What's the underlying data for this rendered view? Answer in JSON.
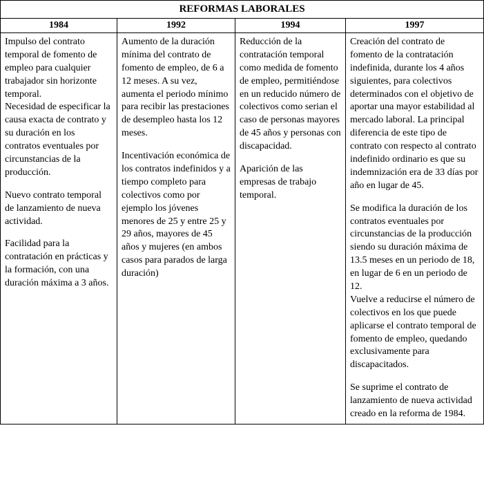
{
  "title": "REFORMAS LABORALES",
  "headers": {
    "h1": "1984",
    "h2": "1992",
    "h3": "1994",
    "h4": "1997"
  },
  "col1": {
    "p1": "Impulso del contrato temporal de fomento de empleo para cualquier trabajador sin horizonte temporal.",
    "p2": "Necesidad de especificar la causa exacta de contrato y su duración en los contratos eventuales por circunstancias de la producción.",
    "p3": "Nuevo contrato temporal de lanzamiento de nueva actividad.",
    "p4": "Facilidad para la contratación en prácticas y la formación, con una duración máxima a 3 años."
  },
  "col2": {
    "p1": "Aumento de la duración mínima del contrato de fomento de empleo, de 6 a 12 meses. A su vez, aumenta el periodo mínimo para recibir las prestaciones de desempleo hasta los 12 meses.",
    "p2": "Incentivación económica de los contratos indefinidos y a tiempo completo para colectivos como por ejemplo los jóvenes menores de 25 y entre 25 y 29 años, mayores de 45 años y mujeres (en ambos casos para parados de larga duración)"
  },
  "col3": {
    "p1": "Reducción de la contratación temporal como medida de fomento de empleo, permitiéndose en un reducido número de colectivos como serian el caso de personas mayores de 45 años y personas con discapacidad.",
    "p2": "Aparición de las empresas de trabajo temporal."
  },
  "col4": {
    "p1": "Creación del contrato de fomento de la contratación indefinida, durante los 4 años siguientes, para colectivos determinados con el objetivo de aportar una mayor estabilidad al mercado laboral. La principal diferencia de este tipo de contrato con respecto al  contrato indefinido ordinario es que su indemnización era de 33 días por año en lugar de 45.",
    "p2": "Se modifica la duración de los contratos eventuales por circunstancias de la producción siendo su duración máxima de 13.5 meses en un periodo de 18, en lugar de 6 en un periodo de 12.",
    "p3": "Vuelve a reducirse el número de colectivos en los que puede aplicarse el contrato temporal de fomento de empleo, quedando exclusivamente para discapacitados.",
    "p4": "Se suprime el contrato de lanzamiento de nueva actividad creado en la reforma de 1984."
  }
}
